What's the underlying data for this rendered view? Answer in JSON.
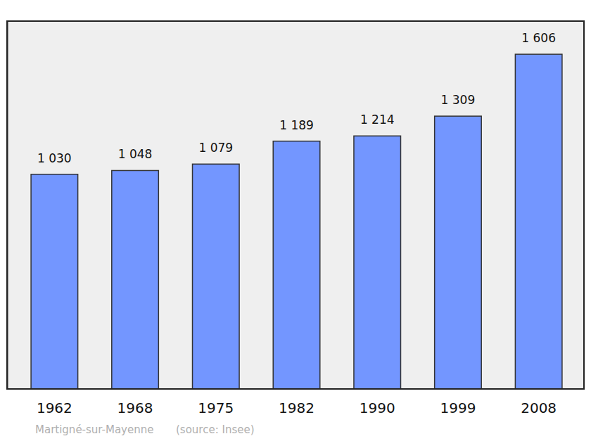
{
  "chart_data": {
    "type": "bar",
    "title": "Martigné-sur-Mayenne",
    "subtitle": "(source: Insee)",
    "categories": [
      "1962",
      "1968",
      "1975",
      "1982",
      "1990",
      "1999",
      "2008"
    ],
    "values": [
      1030,
      1048,
      1079,
      1189,
      1214,
      1309,
      1606
    ],
    "value_labels": [
      "1 030",
      "1 048",
      "1 079",
      "1 189",
      "1 214",
      "1 309",
      "1 606"
    ],
    "color": "#7396ff",
    "ylim": [
      0,
      1765
    ],
    "data_labels": true,
    "grid": false,
    "tick_labels": "x"
  }
}
